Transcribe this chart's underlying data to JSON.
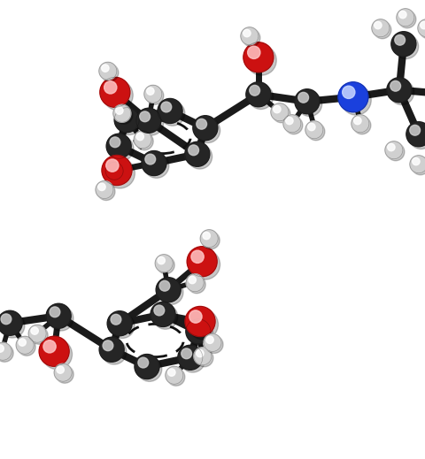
{
  "bg_color": "#ffffff",
  "C_color": "#252525",
  "O_color": "#cc1111",
  "N_color": "#1a40dd",
  "H_color": "#d0d0d0",
  "CR": 14,
  "OR": 17,
  "NR": 17,
  "HR": 10,
  "BW": 6,
  "fig_w": 4.8,
  "fig_h": 5.19,
  "dpi": 100
}
